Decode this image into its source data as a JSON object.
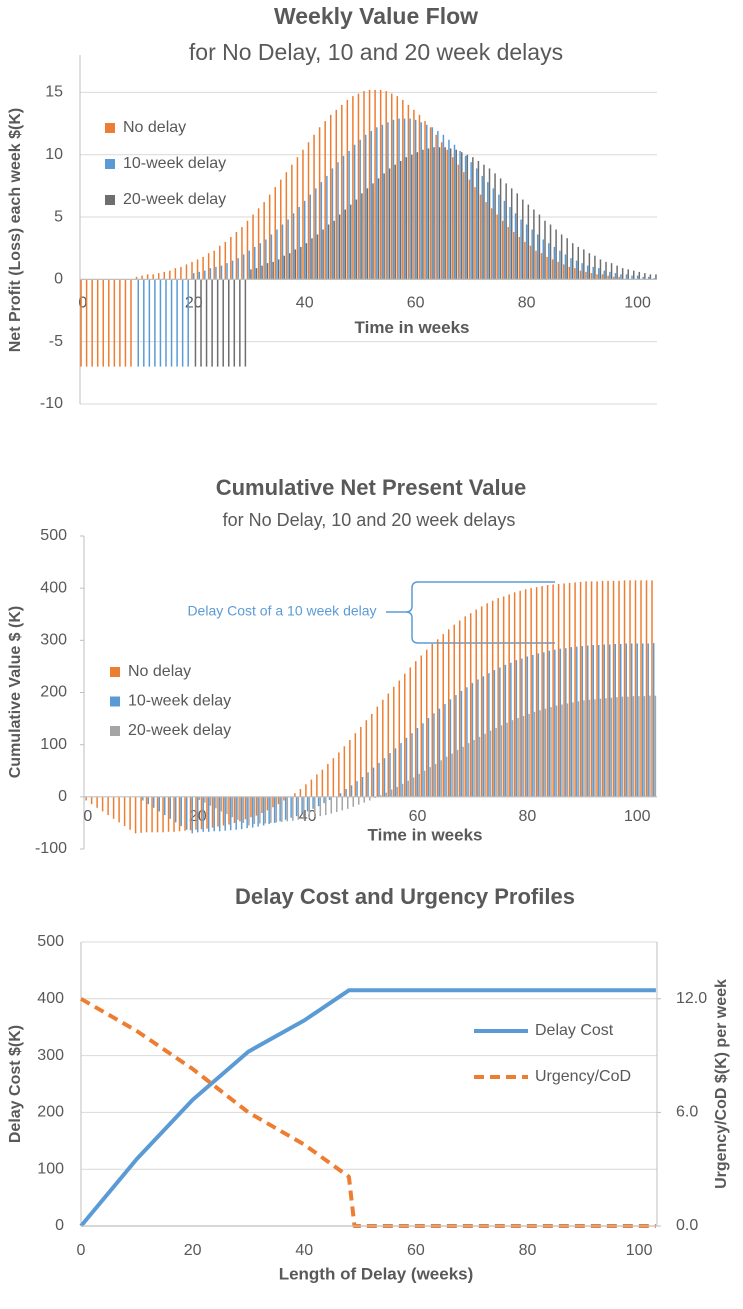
{
  "chart_data": [
    {
      "type": "bar",
      "title": "Weekly Value Flow",
      "subtitle": "for No Delay, 10 and 20 week delays",
      "xlabel": "Time in weeks",
      "ylabel": "Net Profit (Loss) each week  $(K)",
      "x": [
        0,
        1,
        2,
        3,
        4,
        5,
        6,
        7,
        8,
        9,
        10,
        11,
        12,
        13,
        14,
        15,
        16,
        17,
        18,
        19,
        20,
        21,
        22,
        23,
        24,
        25,
        26,
        27,
        28,
        29,
        30,
        31,
        32,
        33,
        34,
        35,
        36,
        37,
        38,
        39,
        40,
        41,
        42,
        43,
        44,
        45,
        46,
        47,
        48,
        49,
        50,
        51,
        52,
        53,
        54,
        55,
        56,
        57,
        58,
        59,
        60,
        61,
        62,
        63,
        64,
        65,
        66,
        67,
        68,
        69,
        70,
        71,
        72,
        73,
        74,
        75,
        76,
        77,
        78,
        79,
        80,
        81,
        82,
        83,
        84,
        85,
        86,
        87,
        88,
        89,
        90,
        91,
        92,
        93,
        94,
        95,
        96,
        97,
        98,
        99,
        100,
        101,
        102,
        103
      ],
      "xlim": [
        -0.5,
        103.5
      ],
      "xticks": [
        0,
        20,
        40,
        60,
        80,
        100
      ],
      "ylim": [
        -10,
        18
      ],
      "yticks": [
        -10,
        -5,
        0,
        5,
        10,
        15
      ],
      "grid": true,
      "legend_position": "upper left",
      "series": [
        {
          "name": "No delay",
          "color": "#ed7d31",
          "values": [
            -7,
            -7,
            -7,
            -7,
            -7,
            -7,
            -7,
            -7,
            -7,
            -7,
            0.2,
            0.3,
            0.4,
            0.4,
            0.5,
            0.6,
            0.7,
            0.9,
            1.0,
            1.2,
            1.4,
            1.6,
            1.8,
            2.1,
            2.3,
            2.7,
            3.0,
            3.4,
            3.8,
            4.2,
            4.7,
            5.2,
            5.7,
            6.2,
            6.8,
            7.4,
            8.0,
            8.6,
            9.2,
            9.8,
            10.4,
            11.0,
            11.6,
            12.2,
            12.7,
            13.2,
            13.6,
            14.0,
            14.4,
            14.7,
            14.9,
            15.1,
            15.2,
            15.2,
            15.2,
            15.1,
            14.9,
            14.7,
            14.4,
            14.0,
            13.6,
            13.2,
            12.7,
            12.2,
            11.6,
            11.0,
            10.4,
            9.8,
            9.2,
            8.6,
            8.0,
            7.4,
            6.8,
            6.2,
            5.7,
            5.2,
            4.7,
            4.2,
            3.8,
            3.4,
            3.0,
            2.7,
            2.3,
            2.1,
            1.8,
            1.6,
            1.4,
            1.2,
            1.0,
            0.9,
            0.7,
            0.6,
            0.5,
            0.4,
            0.4,
            0.3,
            0.2,
            0.2,
            0,
            0,
            0,
            0,
            0,
            0
          ]
        },
        {
          "name": "10-week delay",
          "color": "#5b9bd5",
          "values": [
            0,
            0,
            0,
            0,
            0,
            0,
            0,
            0,
            0,
            0,
            -7,
            -7,
            -7,
            -7,
            -7,
            -7,
            -7,
            -7,
            -7,
            -7,
            0.5,
            0.6,
            0.7,
            0.9,
            1.0,
            1.1,
            1.3,
            1.5,
            1.7,
            2.0,
            2.3,
            2.6,
            2.9,
            3.2,
            3.6,
            4.0,
            4.4,
            4.8,
            5.3,
            5.8,
            6.3,
            6.8,
            7.3,
            7.8,
            8.3,
            8.9,
            9.4,
            9.9,
            10.3,
            10.8,
            11.2,
            11.6,
            11.9,
            12.2,
            12.4,
            12.6,
            12.8,
            12.9,
            12.9,
            12.9,
            12.8,
            12.6,
            12.4,
            12.2,
            11.9,
            11.6,
            11.2,
            10.8,
            10.3,
            9.9,
            9.4,
            8.9,
            8.3,
            7.8,
            7.3,
            6.8,
            6.3,
            5.8,
            5.3,
            4.8,
            4.4,
            4.0,
            3.6,
            3.2,
            2.9,
            2.6,
            2.3,
            2.0,
            1.7,
            1.5,
            1.3,
            1.1,
            1.0,
            0.9,
            0.7,
            0.6,
            0.5,
            0.4,
            0.4,
            0.3,
            0.3,
            0.2,
            0.2,
            0.1
          ]
        },
        {
          "name": "20-week delay",
          "color": "#6e6e6e",
          "values": [
            0,
            0,
            0,
            0,
            0,
            0,
            0,
            0,
            0,
            0,
            0,
            0,
            0,
            0,
            0,
            0,
            0,
            0,
            0,
            0,
            -7,
            -7,
            -7,
            -7,
            -7,
            -7,
            -7,
            -7,
            -7,
            -7,
            0.8,
            0.9,
            1.1,
            1.3,
            1.4,
            1.6,
            1.9,
            2.1,
            2.4,
            2.6,
            2.9,
            3.3,
            3.6,
            4.0,
            4.4,
            4.7,
            5.2,
            5.6,
            6.0,
            6.4,
            6.9,
            7.3,
            7.7,
            8.1,
            8.5,
            8.9,
            9.2,
            9.5,
            9.8,
            10.0,
            10.2,
            10.4,
            10.5,
            10.6,
            10.6,
            10.6,
            10.5,
            10.4,
            10.2,
            10.0,
            9.8,
            9.5,
            9.2,
            8.9,
            8.5,
            8.1,
            7.7,
            7.3,
            6.9,
            6.4,
            6.0,
            5.6,
            5.2,
            4.7,
            4.4,
            4.0,
            3.6,
            3.3,
            2.9,
            2.6,
            2.4,
            2.1,
            1.9,
            1.6,
            1.4,
            1.3,
            1.1,
            0.9,
            0.8,
            0.7,
            0.6,
            0.5,
            0.4,
            0.4
          ]
        }
      ]
    },
    {
      "type": "bar",
      "title": "Cumulative Net Present Value",
      "subtitle": "for No Delay, 10 and 20 week delays",
      "xlabel": "Time in weeks",
      "ylabel": "Cumulative Value  $ (K)",
      "annotation": "Delay Cost of a 10 week delay",
      "x": [
        0,
        1,
        2,
        3,
        4,
        5,
        6,
        7,
        8,
        9,
        10,
        11,
        12,
        13,
        14,
        15,
        16,
        17,
        18,
        19,
        20,
        21,
        22,
        23,
        24,
        25,
        26,
        27,
        28,
        29,
        30,
        31,
        32,
        33,
        34,
        35,
        36,
        37,
        38,
        39,
        40,
        41,
        42,
        43,
        44,
        45,
        46,
        47,
        48,
        49,
        50,
        51,
        52,
        53,
        54,
        55,
        56,
        57,
        58,
        59,
        60,
        61,
        62,
        63,
        64,
        65,
        66,
        67,
        68,
        69,
        70,
        71,
        72,
        73,
        74,
        75,
        76,
        77,
        78,
        79,
        80,
        81,
        82,
        83,
        84,
        85,
        86,
        87,
        88,
        89,
        90,
        91,
        92,
        93,
        94,
        95,
        96,
        97,
        98,
        99,
        100,
        101,
        102,
        103
      ],
      "xlim": [
        -0.7,
        103.6
      ],
      "xticks": [
        0,
        20,
        40,
        60,
        80,
        100
      ],
      "ylim": [
        -100,
        500
      ],
      "yticks": [
        -100,
        0,
        100,
        200,
        300,
        400,
        500
      ],
      "grid": false,
      "legend_position": "center left",
      "series": [
        {
          "name": "No delay",
          "color": "#ed7d31",
          "values": [
            -7,
            -14,
            -21,
            -28,
            -35,
            -42,
            -49,
            -56,
            -63,
            -70,
            -69,
            -68,
            -68,
            -68,
            -68,
            -67,
            -67,
            -66,
            -65,
            -64,
            -63,
            -62,
            -61,
            -59,
            -57,
            -55,
            -53,
            -50,
            -47,
            -43,
            -39,
            -36,
            -31,
            -26,
            -20,
            -14,
            -7,
            -1,
            7,
            15,
            24,
            33,
            43,
            52,
            63,
            74,
            85,
            97,
            109,
            122,
            134,
            147,
            159,
            173,
            186,
            198,
            211,
            223,
            236,
            248,
            260,
            271,
            282,
            293,
            302,
            312,
            321,
            330,
            338,
            346,
            352,
            359,
            365,
            371,
            376,
            381,
            384,
            388,
            392,
            395,
            398,
            400,
            402,
            404,
            406,
            407,
            408,
            409,
            410,
            411,
            412,
            413,
            413,
            413,
            414,
            414,
            414,
            414,
            415,
            415,
            415,
            415,
            415,
            415
          ]
        },
        {
          "name": "10-week delay",
          "color": "#5b9bd5",
          "values": [
            0,
            0,
            0,
            0,
            0,
            0,
            0,
            0,
            0,
            0,
            -7,
            -14,
            -21,
            -28,
            -35,
            -42,
            -49,
            -56,
            -63,
            -70,
            -68,
            -67,
            -67,
            -66,
            -66,
            -65,
            -64,
            -63,
            -62,
            -60,
            -59,
            -57,
            -55,
            -52,
            -50,
            -47,
            -44,
            -40,
            -37,
            -32,
            -28,
            -23,
            -18,
            -12,
            -6,
            0,
            7,
            15,
            22,
            30,
            38,
            47,
            56,
            65,
            74,
            84,
            93,
            103,
            113,
            122,
            132,
            141,
            151,
            160,
            169,
            178,
            187,
            195,
            203,
            210,
            218,
            225,
            231,
            237,
            243,
            248,
            253,
            257,
            262,
            265,
            269,
            272,
            275,
            277,
            280,
            282,
            284,
            285,
            287,
            288,
            289,
            290,
            291,
            291,
            292,
            292,
            293,
            293,
            294,
            294,
            294,
            294,
            294,
            295
          ]
        },
        {
          "name": "20-week delay",
          "color": "#a5a5a5",
          "values": [
            0,
            0,
            0,
            0,
            0,
            0,
            0,
            0,
            0,
            0,
            0,
            0,
            0,
            0,
            0,
            0,
            0,
            0,
            0,
            0,
            -6,
            -11,
            -17,
            -22,
            -28,
            -33,
            -39,
            -44,
            -50,
            -55,
            -52,
            -51,
            -51,
            -50,
            -49,
            -48,
            -47,
            -46,
            -44,
            -43,
            -41,
            -39,
            -37,
            -35,
            -32,
            -29,
            -26,
            -23,
            -19,
            -15,
            -11,
            -7,
            -2,
            3,
            8,
            14,
            19,
            25,
            31,
            37,
            44,
            50,
            57,
            63,
            70,
            77,
            83,
            90,
            96,
            103,
            109,
            115,
            121,
            127,
            132,
            137,
            142,
            147,
            151,
            155,
            159,
            163,
            166,
            169,
            172,
            175,
            177,
            179,
            181,
            183,
            185,
            186,
            187,
            188,
            189,
            190,
            191,
            192,
            192,
            193,
            193,
            193,
            194,
            194
          ]
        }
      ]
    },
    {
      "type": "line",
      "title": "Delay Cost and Urgency Profiles",
      "xlabel": "Length of Delay (weeks)",
      "ylabel": "Delay Cost  $(K)",
      "y2label": "Urgency/CoD $(K) per week",
      "x": [
        0,
        10,
        20,
        30,
        40,
        48,
        49,
        103
      ],
      "xlim": [
        0,
        103.2
      ],
      "xticks": [
        0,
        20,
        40,
        60,
        80,
        100
      ],
      "ylim": [
        0,
        500
      ],
      "yticks": [
        0,
        100,
        200,
        300,
        400,
        500
      ],
      "y2lim": [
        0,
        15
      ],
      "y2ticks": [
        {
          "value": 0,
          "label": "0.0"
        },
        {
          "value": 6,
          "label": "6.0"
        },
        {
          "value": 12,
          "label": "12.0"
        }
      ],
      "grid": true,
      "legend_position": "center right",
      "series": [
        {
          "name": "Delay Cost",
          "color": "#5b9bd5",
          "line_style": "solid",
          "values": [
            0,
            118,
            222,
            307,
            362,
            415,
            415,
            415
          ]
        },
        {
          "name": "Urgency/CoD",
          "color": "#ed7d31",
          "line_style": "dashed",
          "axis": "y2",
          "values": [
            12.0,
            10.3,
            8.3,
            6.0,
            4.3,
            2.6,
            0,
            0
          ]
        }
      ]
    }
  ]
}
